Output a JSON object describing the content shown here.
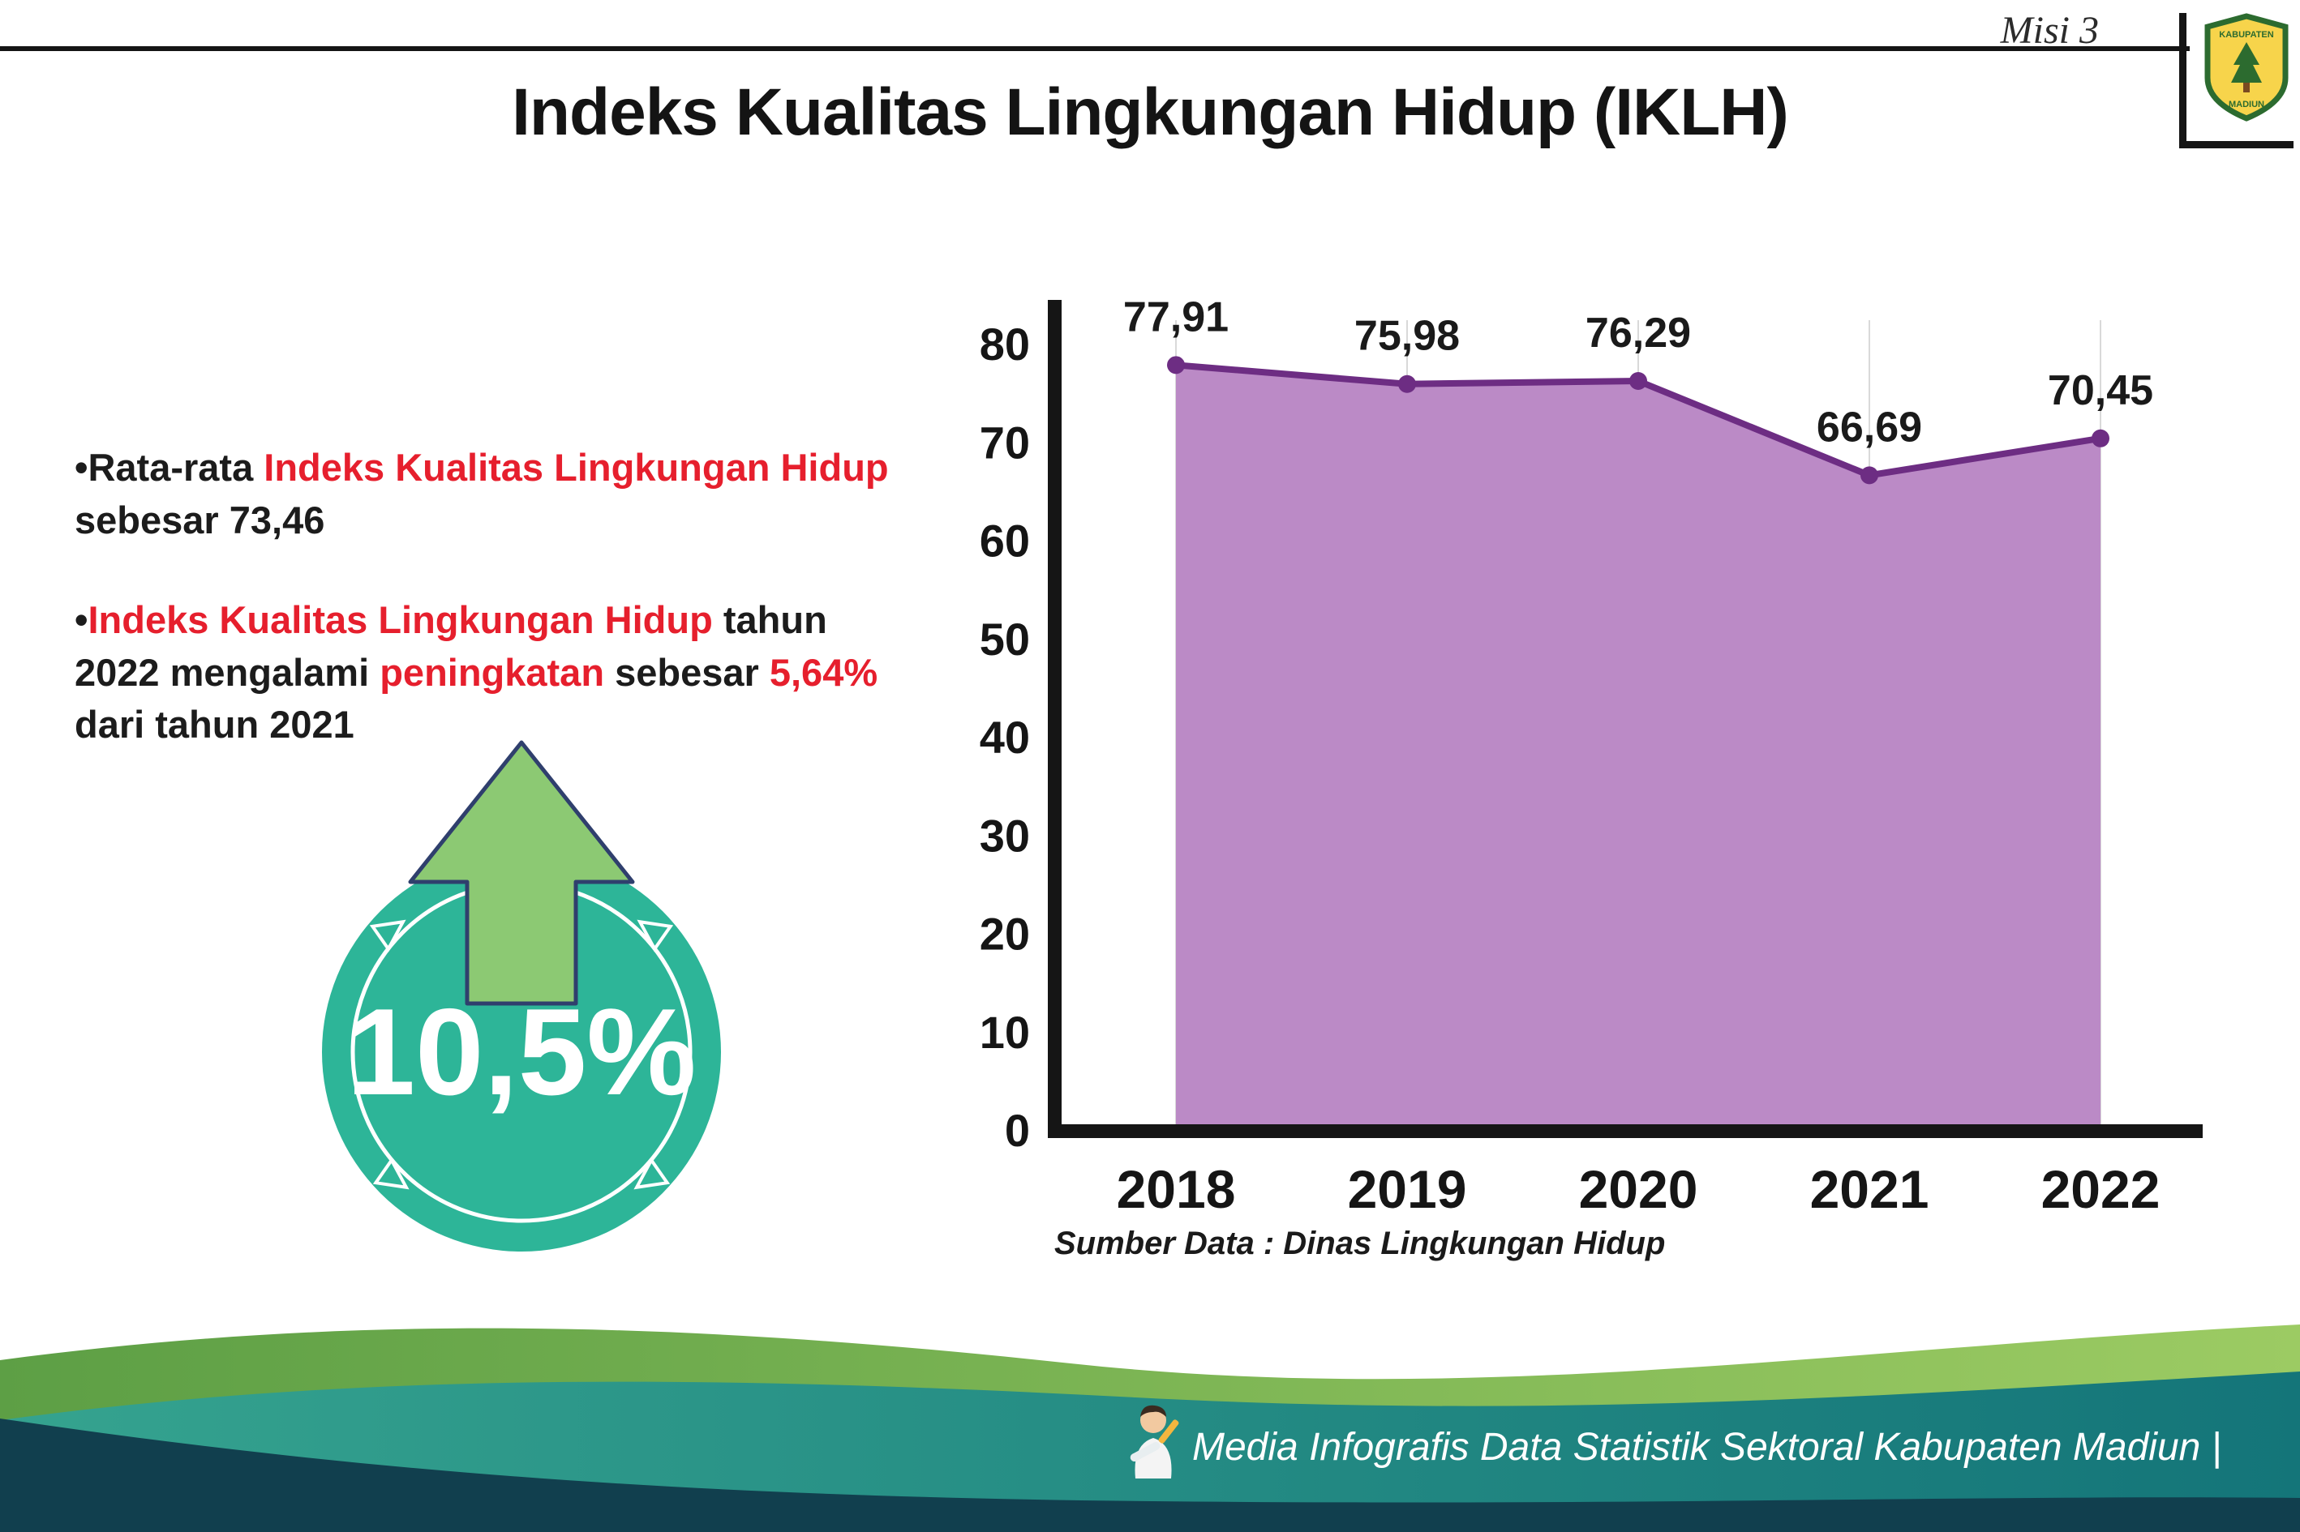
{
  "header": {
    "misi": "Misi 3",
    "logo": {
      "line1": "KABUPATEN",
      "line2": "MADIUN"
    }
  },
  "title": "Indeks Kualitas Lingkungan Hidup (IKLH)",
  "bullets": {
    "marker": "•",
    "b1": {
      "seg1": "Rata-rata ",
      "seg2": "Indeks Kualitas Lingkungan Hidup",
      "seg3": " sebesar 73,46"
    },
    "b2": {
      "seg1": "Indeks Kualitas Lingkungan Hidup",
      "seg2": " tahun 2022 mengalami ",
      "seg3": "peningkatan",
      "seg4": " sebesar ",
      "seg5": "5,64%",
      "seg6": " dari tahun 2021"
    }
  },
  "badge": {
    "value": "10,5%"
  },
  "chart_data": {
    "type": "area",
    "title": "Indeks Kualitas Lingkungan Hidup (IKLH)",
    "categories": [
      "2018",
      "2019",
      "2020",
      "2021",
      "2022"
    ],
    "values": [
      77.91,
      75.98,
      76.29,
      66.69,
      70.45
    ],
    "labels": [
      "77,91",
      "75,98",
      "76,29",
      "66,69",
      "70,45"
    ],
    "ylim": [
      0,
      80
    ],
    "yticks": [
      0,
      10,
      20,
      30,
      40,
      50,
      60,
      70,
      80
    ],
    "grid": true,
    "legend": "none",
    "fill_color": "#bb8ac6",
    "line_color": "#6d2d83",
    "source": "Sumber Data : Dinas Lingkungan Hidup"
  },
  "footer": {
    "credit": "Media Infografis Data Statistik Sektoral Kabupaten Madiun |"
  },
  "colors": {
    "accent_red": "#e61f2d",
    "badge_teal": "#2db598",
    "arrow_green": "#8cc973",
    "footer_green": "#6fae4e",
    "footer_teal": "#2fa08e",
    "footer_dark": "#113f4e"
  }
}
